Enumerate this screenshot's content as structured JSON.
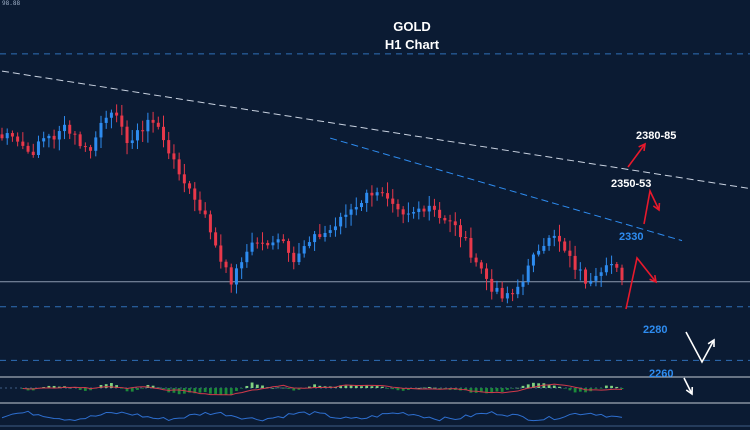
{
  "title": "GOLD",
  "subtitle": "H1 Chart",
  "corner_value": "98.88",
  "colors": {
    "background": "#0b1b33",
    "bull_candle": "#2e8cf0",
    "bear_candle": "#e8384a",
    "level_label_blue": "#2e8cf0",
    "level_label_white": "#ffffff",
    "projection_red": "#e8192c",
    "projection_white": "#ffffff",
    "osc_hist_pos": "#7fd17f",
    "osc_hist_neg": "#1c8a3a"
  },
  "chart_data": {
    "type": "candlestick",
    "title": "GOLD",
    "subtitle": "H1 Chart",
    "y_scale_units": "USD",
    "price_range_shown": [
      2248,
      2414
    ],
    "price_series_approx": [
      2368,
      2372,
      2366,
      2360,
      2364,
      2370,
      2368,
      2375,
      2370,
      2362,
      2364,
      2378,
      2384,
      2372,
      2366,
      2370,
      2378,
      2374,
      2366,
      2352,
      2346,
      2338,
      2330,
      2318,
      2306,
      2292,
      2300,
      2312,
      2314,
      2310,
      2318,
      2314,
      2306,
      2310,
      2314,
      2318,
      2320,
      2324,
      2330,
      2334,
      2338,
      2342,
      2336,
      2330,
      2326,
      2328,
      2332,
      2334,
      2328,
      2324,
      2320,
      2312,
      2304,
      2296,
      2288,
      2284,
      2286,
      2294,
      2302,
      2312,
      2318,
      2314,
      2306,
      2300,
      2294,
      2298,
      2302,
      2300,
      2296
    ],
    "levels": [
      {
        "label": "2380-85",
        "price": 2382,
        "style": "white"
      },
      {
        "label": "2350-53",
        "price": 2351,
        "style": "white"
      },
      {
        "label": "2330",
        "price": 2330,
        "style": "blue"
      },
      {
        "label": "2280",
        "price": 2280,
        "style": "blue"
      },
      {
        "label": "2260",
        "price": 2260,
        "style": "blue"
      }
    ],
    "horizontal_lines": [
      {
        "price": 2412,
        "style": "dashed"
      },
      {
        "price": 2293,
        "style": "solid"
      },
      {
        "price": 2280,
        "style": "dashed"
      },
      {
        "price": 2252,
        "style": "dashed"
      }
    ],
    "trendlines": [
      {
        "name": "upper",
        "from": [
          0,
          2403
        ],
        "to": [
          110,
          2356
        ],
        "style": "dashed-white"
      },
      {
        "name": "lower",
        "from": [
          63,
          2368
        ],
        "to": [
          116,
          2326
        ],
        "style": "dashed-blue"
      }
    ],
    "projections": [
      {
        "color": "red",
        "path": "up-down-up"
      },
      {
        "color": "white",
        "path": "down-up"
      }
    ],
    "oscillator": {
      "type": "histogram",
      "has_signal_line": true
    },
    "indicator2": {
      "type": "line"
    },
    "grid": false,
    "legend": "none"
  }
}
